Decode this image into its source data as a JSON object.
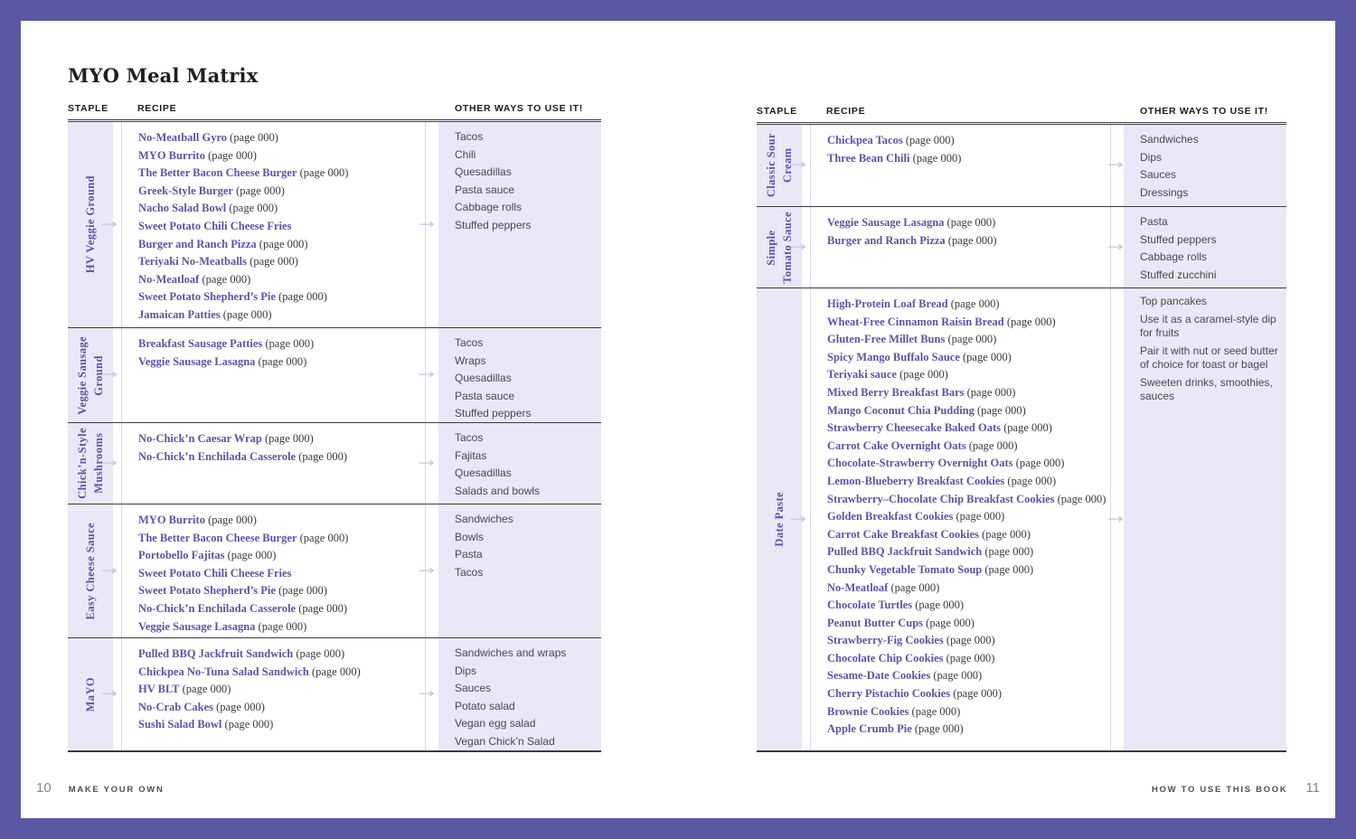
{
  "colors": {
    "frame": "#5a57a5",
    "column_bg": "#eae8f6",
    "recipe_purple": "#5a53a8",
    "rule_dark": "#3b3b40",
    "arrow": "#c9c5e4"
  },
  "left_page": {
    "title": "MYO Meal Matrix",
    "headers": {
      "staple": "STAPLE",
      "recipe": "RECIPE",
      "other": "OTHER WAYS TO USE IT!"
    },
    "rows": [
      {
        "staple": [
          "HV Veggie Ground"
        ],
        "recipes": [
          {
            "name": "No-Meatball Gyro",
            "page": "(page 000)"
          },
          {
            "name": "MYO Burrito",
            "page": "(page 000)"
          },
          {
            "name": "The Better Bacon Cheese Burger",
            "page": "(page 000)"
          },
          {
            "name": "Greek-Style Burger",
            "page": "(page 000)"
          },
          {
            "name": "Nacho Salad Bowl",
            "page": "(page 000)"
          },
          {
            "name": "Sweet Potato Chili Cheese Fries",
            "page": ""
          },
          {
            "name": "Burger and Ranch Pizza",
            "page": "(page 000)"
          },
          {
            "name": "Teriyaki No-Meatballs",
            "page": "(page 000)"
          },
          {
            "name": "No-Meatloaf",
            "page": "(page 000)"
          },
          {
            "name": "Sweet Potato Shepherd’s Pie",
            "page": "(page 000)"
          },
          {
            "name": "Jamaican Patties",
            "page": "(page 000)"
          }
        ],
        "other_ways": [
          "Tacos",
          "Chili",
          "Quesadillas",
          "Pasta sauce",
          "Cabbage rolls",
          "Stuffed peppers"
        ]
      },
      {
        "staple": [
          "Veggie Sausage",
          "Ground"
        ],
        "recipes": [
          {
            "name": "Breakfast Sausage Patties",
            "page": "(page 000)"
          },
          {
            "name": "Veggie Sausage Lasagna",
            "page": "(page 000)"
          }
        ],
        "other_ways": [
          "Tacos",
          "Wraps",
          "Quesadillas",
          "Pasta sauce",
          "Stuffed peppers"
        ]
      },
      {
        "staple": [
          "Chick’n-Style",
          "Mushrooms"
        ],
        "recipes": [
          {
            "name": "No-Chick’n Caesar Wrap",
            "page": "(page 000)"
          },
          {
            "name": "No-Chick’n Enchilada Casserole",
            "page": "(page 000)"
          }
        ],
        "other_ways": [
          "Tacos",
          "Fajitas",
          "Quesadillas",
          "Salads and bowls"
        ]
      },
      {
        "staple": [
          "Easy Cheese Sauce"
        ],
        "recipes": [
          {
            "name": "MYO Burrito",
            "page": "(page 000)"
          },
          {
            "name": "The Better Bacon Cheese Burger",
            "page": "(page 000)"
          },
          {
            "name": "Portobello Fajitas",
            "page": "(page 000)"
          },
          {
            "name": "Sweet Potato Chili Cheese Fries",
            "page": ""
          },
          {
            "name": "Sweet Potato Shepherd’s Pie",
            "page": "(page 000)"
          },
          {
            "name": "No-Chick’n Enchilada Casserole",
            "page": "(page 000)"
          },
          {
            "name": "Veggie Sausage Lasagna",
            "page": "(page 000)"
          }
        ],
        "other_ways": [
          "Sandwiches",
          "Bowls",
          "Pasta",
          "Tacos"
        ]
      },
      {
        "staple": [
          "MaYO"
        ],
        "recipes": [
          {
            "name": "Pulled BBQ Jackfruit Sandwich",
            "page": "(page 000)"
          },
          {
            "name": "Chickpea No-Tuna Salad Sandwich",
            "page": "(page 000)"
          },
          {
            "name": "HV BLT",
            "page": "(page 000)"
          },
          {
            "name": "No-Crab Cakes",
            "page": "(page 000)"
          },
          {
            "name": "Sushi Salad Bowl",
            "page": "(page 000)"
          }
        ],
        "other_ways": [
          "Sandwiches and wraps",
          "Dips",
          "Sauces",
          "Potato salad",
          "Vegan egg salad",
          "Vegan Chick’n Salad"
        ]
      }
    ],
    "footer": {
      "page_number": "10",
      "label": "MAKE YOUR OWN"
    }
  },
  "right_page": {
    "headers": {
      "staple": "STAPLE",
      "recipe": "RECIPE",
      "other": "OTHER WAYS TO USE IT!"
    },
    "rows": [
      {
        "staple": [
          "Classic Sour",
          "Cream"
        ],
        "recipes": [
          {
            "name": "Chickpea Tacos",
            "page": "(page 000)"
          },
          {
            "name": "Three Bean Chili",
            "page": "(page 000)"
          }
        ],
        "other_ways": [
          "Sandwiches",
          "Dips",
          "Sauces",
          "Dressings"
        ]
      },
      {
        "staple": [
          "Simple",
          "Tomato Sauce"
        ],
        "recipes": [
          {
            "name": "Veggie Sausage Lasagna",
            "page": "(page 000)"
          },
          {
            "name": "Burger and Ranch Pizza",
            "page": "(page 000)"
          }
        ],
        "other_ways": [
          "Pasta",
          "Stuffed peppers",
          "Cabbage rolls",
          "Stuffed zucchini"
        ]
      },
      {
        "staple": [
          "Date Paste"
        ],
        "recipes": [
          {
            "name": "High-Protein Loaf Bread",
            "page": "(page 000)"
          },
          {
            "name": "Wheat-Free Cinnamon Raisin Bread",
            "page": "(page 000)"
          },
          {
            "name": "Gluten-Free Millet Buns",
            "page": "(page 000)"
          },
          {
            "name": "Spicy Mango Buffalo Sauce",
            "page": "(page 000)"
          },
          {
            "name": "Teriyaki sauce",
            "page": "(page 000)"
          },
          {
            "name": "Mixed Berry Breakfast Bars",
            "page": "(page 000)"
          },
          {
            "name": "Mango Coconut Chia Pudding",
            "page": "(page 000)"
          },
          {
            "name": "Strawberry Cheesecake Baked Oats",
            "page": "(page 000)"
          },
          {
            "name": "Carrot Cake Overnight Oats",
            "page": "(page 000)"
          },
          {
            "name": "Chocolate-Strawberry Overnight Oats",
            "page": "(page 000)"
          },
          {
            "name": "Lemon-Blueberry Breakfast Cookies",
            "page": "(page 000)"
          },
          {
            "name": "Strawberry–Chocolate Chip Breakfast Cookies",
            "page": "(page 000)"
          },
          {
            "name": "Golden Breakfast Cookies",
            "page": "(page 000)"
          },
          {
            "name": "Carrot Cake Breakfast Cookies",
            "page": "(page 000)"
          },
          {
            "name": "Pulled BBQ Jackfruit Sandwich",
            "page": "(page 000)"
          },
          {
            "name": "Chunky Vegetable Tomato Soup",
            "page": "(page 000)"
          },
          {
            "name": "No-Meatloaf",
            "page": "(page 000)"
          },
          {
            "name": "Chocolate Turtles",
            "page": "(page 000)"
          },
          {
            "name": "Peanut Butter Cups",
            "page": "(page 000)"
          },
          {
            "name": "Strawberry-Fig Cookies",
            "page": "(page 000)"
          },
          {
            "name": "Chocolate Chip Cookies",
            "page": "(page 000)"
          },
          {
            "name": "Sesame-Date Cookies",
            "page": "(page 000)"
          },
          {
            "name": "Cherry Pistachio Cookies",
            "page": "(page 000)"
          },
          {
            "name": "Brownie Cookies",
            "page": "(page 000)"
          },
          {
            "name": "Apple Crumb Pie",
            "page": "(page 000)"
          }
        ],
        "other_style": "paragraphs",
        "other_ways": [
          "Top pancakes",
          "Use it as a caramel-style dip for fruits",
          "Pair it with nut or seed butter of choice for toast or bagel",
          "Sweeten drinks, smoothies, sauces"
        ]
      }
    ],
    "footer": {
      "label": "HOW TO USE THIS BOOK",
      "page_number": "11"
    }
  }
}
